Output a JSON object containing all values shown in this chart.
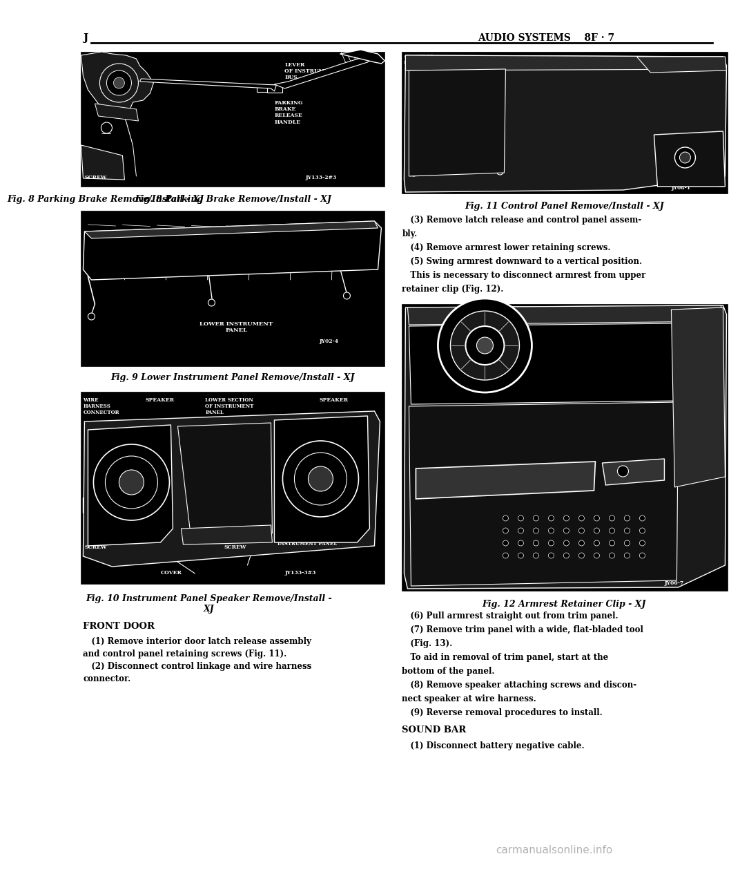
{
  "bg_color": "#ffffff",
  "page_width": 9.6,
  "page_height": 12.42,
  "header_text": "J",
  "header_right": "AUDIO SYSTEMS    8F · 7",
  "watermark": "carmanualsonline.info",
  "fig8_caption": "Fig. 8 Parking Brake Remove/Install - XJ",
  "fig9_caption": "Fig. 9 Lower Instrument Panel Remove/Install - XJ",
  "fig10_caption": "Fig. 10 Instrument Panel Speaker Remove/Install -\nXJ",
  "fig11_caption": "Fig. 11 Control Panel Remove/Install - XJ",
  "fig12_caption": "Fig. 12 Armrest Retainer Clip - XJ",
  "front_door_heading": "FRONT DOOR",
  "front_door_text_lines": [
    "(1) Remove interior door latch release assembly",
    "and control panel retaining screws (Fig. 11).",
    "(2) Disconnect control linkage and wire harness",
    "connector."
  ],
  "right_col_after11": [
    "(3) Remove latch release and control panel assem-",
    "bly.",
    "(4) Remove armrest lower retaining screws.",
    "(5) Swing armrest downward to a vertical position.",
    "This is necessary to disconnect armrest from upper",
    "retainer clip (Fig. 12)."
  ],
  "right_col_after12": [
    "(6) Pull armrest straight out from trim panel.",
    "(7) Remove trim panel with a wide, flat-bladed tool",
    "(Fig. 13).",
    "To aid in removal of trim panel, start at the",
    "bottom of the panel.",
    "(8) Remove speaker attaching screws and discon-",
    "nect speaker at wire harness.",
    "(9) Reverse removal procedures to install."
  ],
  "sound_bar_heading": "SOUND BAR",
  "sound_bar_text": [
    "(1) Disconnect battery negative cable."
  ],
  "lw": 1.0,
  "lw_thick": 2.0
}
